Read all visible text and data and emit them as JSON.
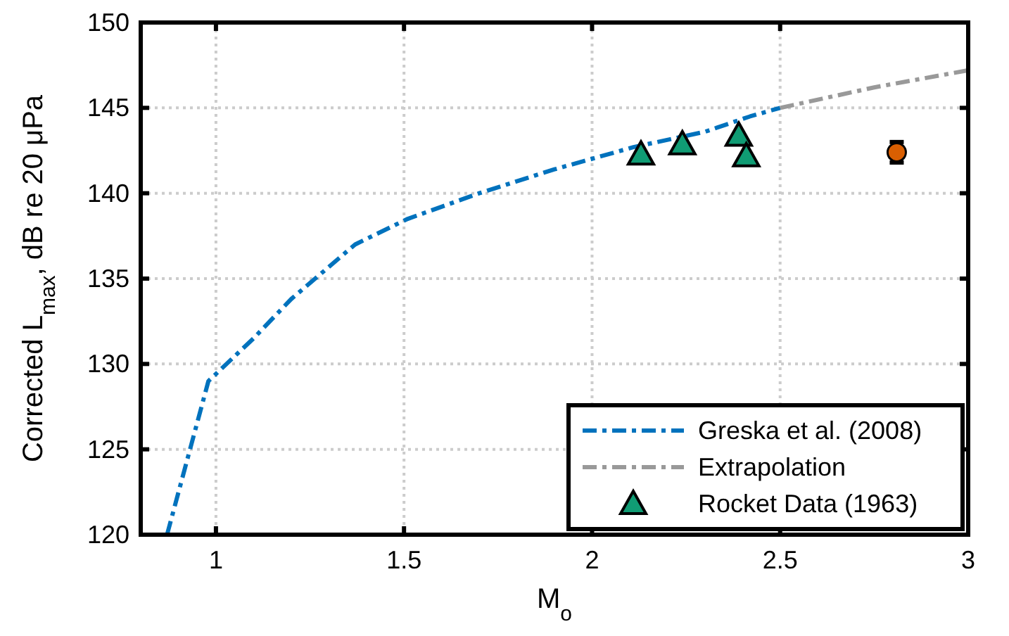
{
  "chart_data": {
    "type": "line",
    "xlabel": "M$_{o}$",
    "ylabel": "Corrected L$_{max}$, dB re 20 μPa",
    "xlim": [
      0.8,
      3
    ],
    "ylim": [
      120,
      150
    ],
    "xticks": [
      1,
      1.5,
      2,
      2.5,
      3
    ],
    "yticks": [
      120,
      125,
      130,
      135,
      140,
      145,
      150
    ],
    "grid": true,
    "legend": "bottom right",
    "series": [
      {
        "name": "Greska et al. (2008)",
        "color": "#0072bd",
        "line_style": "dashed",
        "marker": "none",
        "x": [
          0.87,
          0.98,
          1.1,
          1.2,
          1.37,
          1.51,
          1.7,
          1.9,
          2.11,
          2.3,
          2.42,
          2.5
        ],
        "values": [
          120,
          129,
          131.5,
          133.8,
          137.0,
          138.5,
          140.0,
          141.4,
          142.7,
          143.6,
          144.5,
          145.0
        ]
      },
      {
        "name": "Extrapolation",
        "color": "#999999",
        "line_style": "dashed",
        "marker": "none",
        "x": [
          2.5,
          2.75,
          3
        ],
        "values": [
          145.0,
          146.2,
          147.2
        ]
      },
      {
        "name": "Rocket Data (1963)",
        "color": "#109c74",
        "type": "scatter",
        "marker": "triangle",
        "x": [
          2.13,
          2.24,
          2.39,
          2.41
        ],
        "values": [
          142.2,
          142.8,
          143.3,
          142.1
        ]
      },
      {
        "color": "#d95f02",
        "type": "scatter",
        "marker": "circle",
        "x": [
          2.81
        ],
        "values": [
          142.4
        ],
        "errors": [
          0.6
        ]
      }
    ]
  }
}
